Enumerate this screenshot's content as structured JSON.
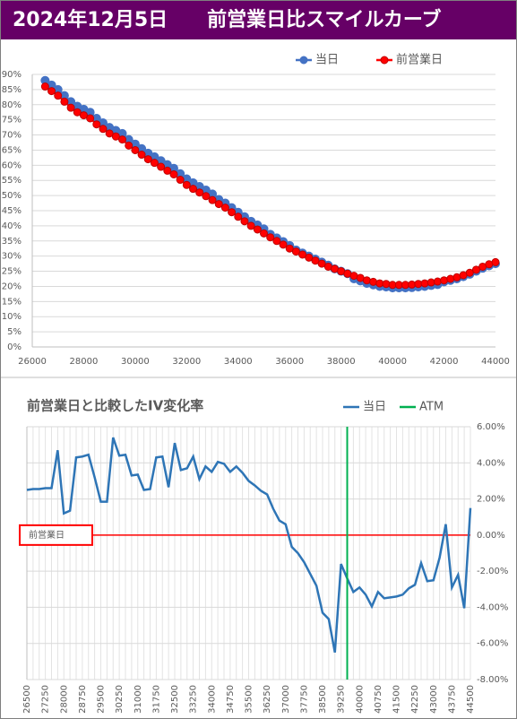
{
  "title": "2024年12月5日　　前営業日比スマイルカーブ",
  "chart_data": [
    {
      "type": "line",
      "legend": "top-right",
      "grid": true,
      "xgrid": false,
      "x": [
        26500,
        26750,
        27000,
        27250,
        27500,
        27750,
        28000,
        28250,
        28500,
        28750,
        29000,
        29250,
        29500,
        29750,
        30000,
        30250,
        30500,
        30750,
        31000,
        31250,
        31500,
        31750,
        32000,
        32250,
        32500,
        32750,
        33000,
        33250,
        33500,
        33750,
        34000,
        34250,
        34500,
        34750,
        35000,
        35250,
        35500,
        35750,
        36000,
        36250,
        36500,
        36750,
        37000,
        37250,
        37500,
        37750,
        38000,
        38250,
        38500,
        38750,
        39000,
        39250,
        39500,
        39750,
        40000,
        40250,
        40500,
        40750,
        41000,
        41250,
        41500,
        41750,
        42000,
        42250,
        42500,
        42750,
        43000,
        43250,
        43500,
        43750,
        44000
      ],
      "series": [
        {
          "name": "当日",
          "color": "#4472c4",
          "values": [
            88,
            86.5,
            85,
            83,
            81,
            79.5,
            78.5,
            77.5,
            75.5,
            74,
            72.5,
            71.5,
            70.5,
            68.5,
            67,
            65.5,
            64,
            62.8,
            61.5,
            60.2,
            59,
            57.2,
            55.5,
            54.2,
            53,
            51.8,
            50.5,
            48.7,
            47.5,
            46,
            44.5,
            43,
            41.5,
            40.3,
            39,
            37.2,
            36,
            34.8,
            33.5,
            32,
            31,
            30,
            29,
            28,
            27,
            25.8,
            25,
            24.2,
            22.5,
            21.8,
            21,
            20.5,
            20,
            19.8,
            19.5,
            19.5,
            19.5,
            19.6,
            19.8,
            20,
            20.3,
            20.6,
            21.5,
            22,
            22.5,
            23.2,
            24,
            25,
            26,
            26.8,
            27.5
          ]
        },
        {
          "name": "前営業日",
          "color": "#ff0000",
          "values": [
            86,
            84.5,
            83,
            81,
            79,
            77.5,
            76.5,
            75.5,
            73.5,
            72,
            70.5,
            69.5,
            68.5,
            66.5,
            65,
            63.5,
            62,
            60.8,
            59.5,
            58.2,
            57,
            55.2,
            53.5,
            52.2,
            51,
            49.8,
            48.5,
            47.2,
            46,
            44.5,
            43,
            41.5,
            40,
            38.8,
            37.5,
            36.2,
            35,
            33.8,
            32.5,
            31.5,
            30.5,
            29.5,
            28.5,
            27.5,
            26.5,
            25.8,
            25,
            24.2,
            23.5,
            22.8,
            22,
            21.5,
            21,
            20.8,
            20.5,
            20.5,
            20.5,
            20.6,
            20.8,
            21,
            21.3,
            21.6,
            22,
            22.5,
            23,
            23.7,
            24.5,
            25.5,
            26.5,
            27.3,
            28
          ]
        }
      ],
      "xlim": [
        26000,
        44000
      ],
      "xticks": [
        26000,
        28000,
        30000,
        32000,
        34000,
        36000,
        38000,
        40000,
        42000,
        44000
      ],
      "ylim": [
        0,
        90
      ],
      "yticks": [
        {
          "value": 0,
          "label": "0%"
        },
        {
          "value": 5,
          "label": "5%"
        },
        {
          "value": 10,
          "label": "10%"
        },
        {
          "value": 15,
          "label": "15%"
        },
        {
          "value": 20,
          "label": "20%"
        },
        {
          "value": 25,
          "label": "25%"
        },
        {
          "value": 30,
          "label": "30%"
        },
        {
          "value": 35,
          "label": "35%"
        },
        {
          "value": 40,
          "label": "40%"
        },
        {
          "value": 45,
          "label": "45%"
        },
        {
          "value": 50,
          "label": "50%"
        },
        {
          "value": 55,
          "label": "55%"
        },
        {
          "value": 60,
          "label": "60%"
        },
        {
          "value": 65,
          "label": "65%"
        },
        {
          "value": 70,
          "label": "70%"
        },
        {
          "value": 75,
          "label": "75%"
        },
        {
          "value": 80,
          "label": "80%"
        },
        {
          "value": 85,
          "label": "85%"
        },
        {
          "value": 90,
          "label": "90%"
        }
      ]
    },
    {
      "type": "line",
      "title": "前営業日と比較したIV変化率",
      "legend": "top-right",
      "grid": true,
      "xgrid": true,
      "x": [
        26500,
        26750,
        27000,
        27250,
        27500,
        27750,
        28000,
        28250,
        28500,
        28750,
        29000,
        29250,
        29500,
        29750,
        30000,
        30250,
        30500,
        30750,
        31000,
        31250,
        31500,
        31750,
        32000,
        32250,
        32500,
        32750,
        33000,
        33250,
        33500,
        33750,
        34000,
        34250,
        34500,
        34750,
        35000,
        35250,
        35500,
        35750,
        36000,
        36250,
        36500,
        36750,
        37000,
        37250,
        37500,
        37750,
        38000,
        38250,
        38500,
        38750,
        39000,
        39250,
        39500,
        39750,
        40000,
        40250,
        40500,
        40750,
        41000,
        41250,
        41500,
        41750,
        42000,
        42250,
        42500,
        42750,
        43000,
        43250,
        43500,
        43750,
        44000,
        44250,
        44500
      ],
      "series": [
        {
          "name": "当日",
          "color": "#2e75b6",
          "values": [
            2.5,
            2.55,
            2.55,
            2.6,
            2.6,
            4.7,
            1.2,
            1.35,
            4.3,
            4.35,
            4.45,
            3.2,
            1.85,
            1.85,
            5.4,
            4.4,
            4.45,
            3.3,
            3.35,
            2.5,
            2.55,
            4.3,
            4.35,
            2.65,
            5.1,
            3.6,
            3.7,
            4.35,
            3.1,
            3.8,
            3.5,
            4.05,
            3.95,
            3.5,
            3.8,
            3.45,
            3.0,
            2.75,
            2.45,
            2.25,
            1.45,
            0.8,
            0.6,
            -0.65,
            -1.0,
            -1.5,
            -2.15,
            -2.8,
            -4.3,
            -4.65,
            -6.5,
            -1.6,
            -2.4,
            -3.15,
            -2.9,
            -3.3,
            -3.95,
            -3.15,
            -3.5,
            -3.45,
            -3.4,
            -3.3,
            -2.95,
            -2.75,
            -1.55,
            -2.55,
            -2.5,
            -1.25,
            0.6,
            -2.9,
            -2.2,
            -4.05,
            1.5
          ]
        }
      ],
      "atm": {
        "name": "ATM",
        "color": "#00b050",
        "x": 39500
      },
      "reference": {
        "label": "前営業日",
        "color": "#ff0000",
        "value": 0
      },
      "xlim": [
        26500,
        44500
      ],
      "xticks": [
        26500,
        27250,
        28000,
        28750,
        29500,
        30250,
        31000,
        31750,
        32500,
        33250,
        34000,
        34750,
        35500,
        36250,
        37000,
        37750,
        38500,
        39250,
        40000,
        40750,
        41500,
        42250,
        43000,
        43750,
        44500
      ],
      "ylim": [
        -8,
        6
      ],
      "yticks": [
        {
          "value": -8,
          "label": "-8.00%"
        },
        {
          "value": -6,
          "label": "-6.00%"
        },
        {
          "value": -4,
          "label": "-4.00%"
        },
        {
          "value": -2,
          "label": "-2.00%"
        },
        {
          "value": 0,
          "label": "0.00%"
        },
        {
          "value": 2,
          "label": "2.00%"
        },
        {
          "value": 4,
          "label": "4.00%"
        },
        {
          "value": 6,
          "label": "6.00%"
        }
      ]
    }
  ]
}
